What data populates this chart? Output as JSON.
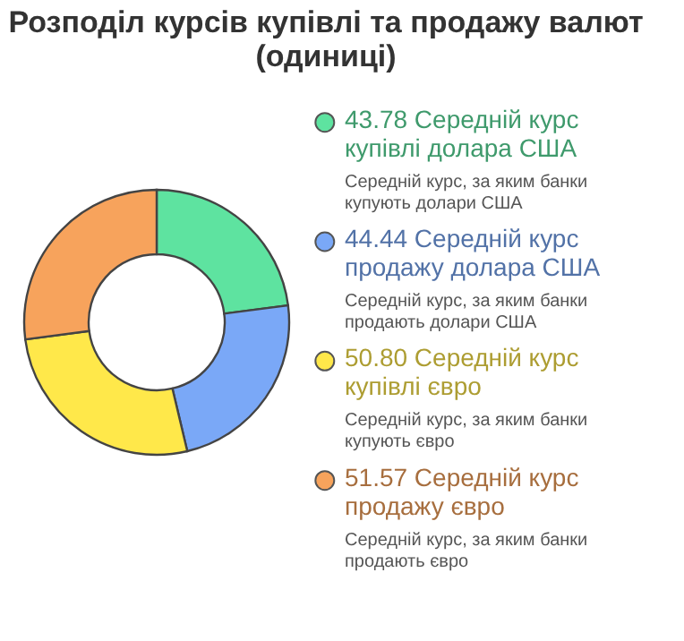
{
  "chart_data": {
    "type": "donut",
    "title": "Розподіл курсів купівлі та продажу валют (одиниці)",
    "categories": [
      "Середній курс купівлі долара США",
      "Середній курс продажу долара США",
      "Середній курс купівлі євро",
      "Середній курс продажу євро"
    ],
    "values": [
      43.78,
      44.44,
      50.8,
      51.57
    ],
    "value_labels": [
      "43.78",
      "44.44",
      "50.80",
      "51.57"
    ],
    "colors": [
      "#5ee3a0",
      "#7aa8f7",
      "#ffe84a",
      "#f7a35c"
    ],
    "legend": "right",
    "annotations": [
      "Середній курс, за яким банки купують долари США",
      "Середній курс, за яким банки продають долари США",
      "Середній курс, за яким банки купують євро",
      "Середній курс, за яким банки продають євро"
    ]
  }
}
